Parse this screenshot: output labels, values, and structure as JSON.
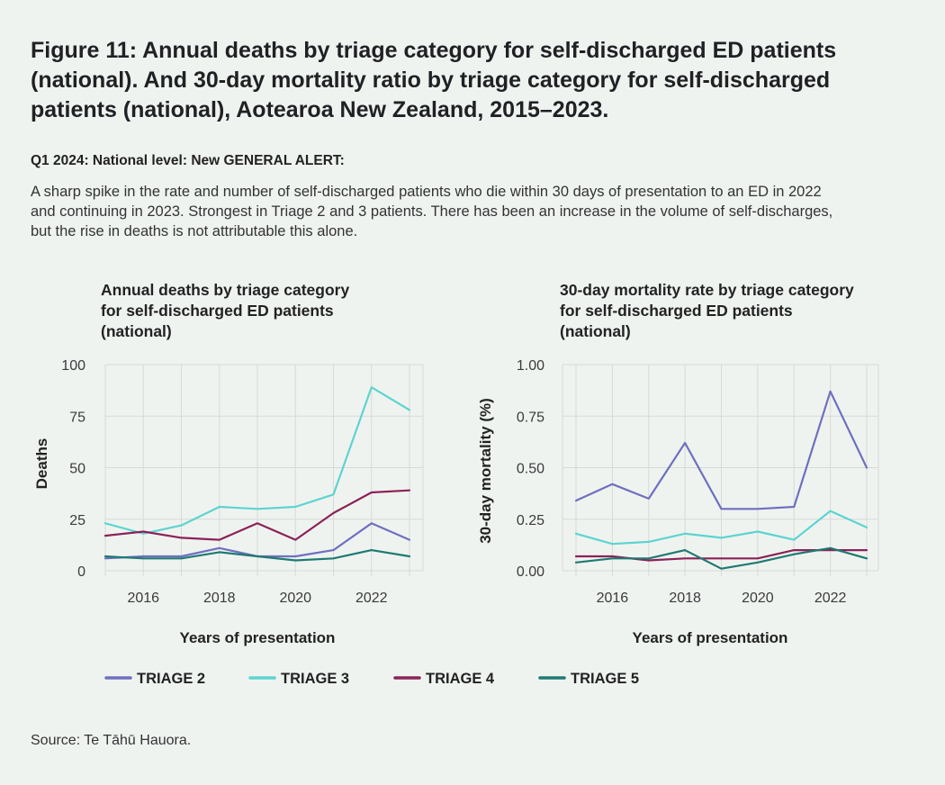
{
  "figure_title": "Figure 11: Annual deaths by triage category for self-discharged ED patients (national). And 30-day mortality ratio by triage category for self-discharged patients (national), Aotearoa New Zealand, 2015–2023.",
  "alert": {
    "heading": "Q1 2024: National level: New GENERAL ALERT:",
    "body": "A sharp spike in the rate and number of self-discharged patients who die within 30 days of presentation to an ED in 2022 and continuing in 2023. Strongest in Triage 2 and 3 patients. There has been an increase in the volume of self-discharges, but the rise in deaths is not attributable this alone."
  },
  "source": "Source: Te Tāhū Hauora.",
  "colors": {
    "triage2": "#6f6fbf",
    "triage3": "#5dd4cf",
    "triage4": "#8b2257",
    "triage5": "#1f7a72",
    "grid": "#d7dad7"
  },
  "chart_data": [
    {
      "type": "line",
      "title": "Annual deaths by triage category for self-discharged ED patients (national)",
      "xlabel": "Years of presentation",
      "ylabel": "Deaths",
      "x": [
        2015,
        2016,
        2017,
        2018,
        2019,
        2020,
        2021,
        2022,
        2023
      ],
      "xlim": [
        2015,
        2023
      ],
      "xticks": [
        "2016",
        "2018",
        "2020",
        "2022"
      ],
      "ylim": [
        0,
        100
      ],
      "yticks": [
        "0",
        "25",
        "50",
        "75",
        "100"
      ],
      "grid": true,
      "series": [
        {
          "name": "TRIAGE 2",
          "values": [
            6,
            7,
            7,
            11,
            7,
            7,
            10,
            23,
            15
          ]
        },
        {
          "name": "TRIAGE 3",
          "values": [
            23,
            18,
            22,
            31,
            30,
            31,
            37,
            89,
            78
          ]
        },
        {
          "name": "TRIAGE 4",
          "values": [
            17,
            19,
            16,
            15,
            23,
            15,
            28,
            38,
            39
          ]
        },
        {
          "name": "TRIAGE 5",
          "values": [
            7,
            6,
            6,
            9,
            7,
            5,
            6,
            10,
            7
          ]
        }
      ]
    },
    {
      "type": "line",
      "title": "30-day mortality rate by triage category for self-discharged ED patients (national)",
      "xlabel": "Years of presentation",
      "ylabel": "30-day mortality (%)",
      "x": [
        2015,
        2016,
        2017,
        2018,
        2019,
        2020,
        2021,
        2022,
        2023
      ],
      "xlim": [
        2015,
        2023
      ],
      "xticks": [
        "2016",
        "2018",
        "2020",
        "2022"
      ],
      "ylim": [
        0,
        1
      ],
      "yticks": [
        "0.00",
        "0.25",
        "0.50",
        "0.75",
        "1.00"
      ],
      "grid": true,
      "series": [
        {
          "name": "TRIAGE 2",
          "values": [
            0.34,
            0.42,
            0.35,
            0.62,
            0.3,
            0.3,
            0.31,
            0.87,
            0.5
          ]
        },
        {
          "name": "TRIAGE 3",
          "values": [
            0.18,
            0.13,
            0.14,
            0.18,
            0.16,
            0.19,
            0.15,
            0.29,
            0.21
          ]
        },
        {
          "name": "TRIAGE 4",
          "values": [
            0.07,
            0.07,
            0.05,
            0.06,
            0.06,
            0.06,
            0.1,
            0.1,
            0.1
          ]
        },
        {
          "name": "TRIAGE 5",
          "values": [
            0.04,
            0.06,
            0.06,
            0.1,
            0.01,
            0.04,
            0.08,
            0.11,
            0.06
          ]
        }
      ]
    }
  ],
  "legend": [
    "TRIAGE 2",
    "TRIAGE 3",
    "TRIAGE 4",
    "TRIAGE 5"
  ]
}
